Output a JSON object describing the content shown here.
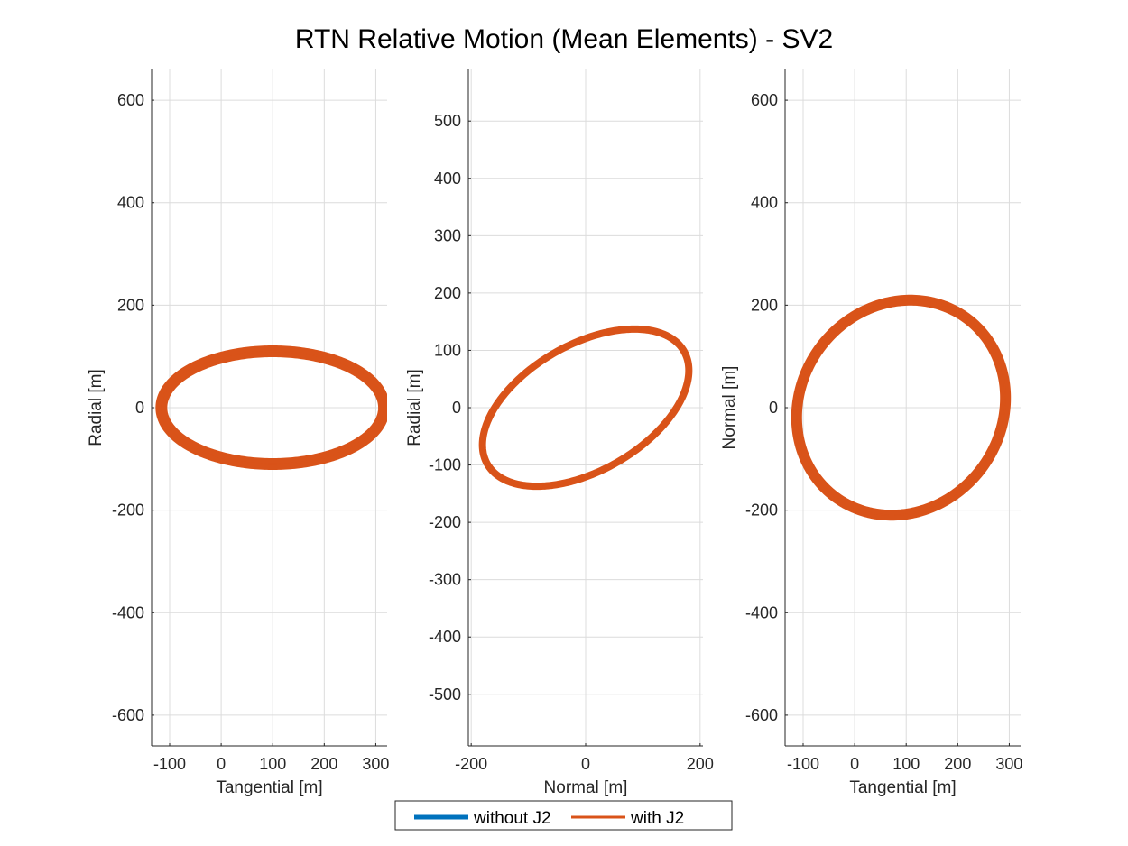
{
  "figure": {
    "title": "RTN Relative Motion (Mean Elements) - SV2"
  },
  "legend": {
    "placement": "bottom-center-outside",
    "entries": [
      {
        "label": "without J2",
        "color": "#0072BD"
      },
      {
        "label": "with J2",
        "color": "#D95319"
      }
    ]
  },
  "chart_data": [
    {
      "type": "line",
      "xlabel": "Tangential [m]",
      "ylabel": "Radial [m]",
      "xlim": [
        -135,
        322
      ],
      "ylim": [
        -660,
        660
      ],
      "xticks": [
        -100,
        0,
        100,
        200,
        300
      ],
      "yticks": [
        -600,
        -400,
        -200,
        0,
        200,
        400,
        600
      ],
      "grid": true,
      "series": [
        {
          "name": "without J2",
          "color": "#0072BD",
          "center": [
            100,
            0
          ],
          "semi_x": 220,
          "semi_y": 112,
          "tilt": 0,
          "band": 0
        },
        {
          "name": "with J2",
          "color": "#D95319",
          "center": [
            100,
            0
          ],
          "semi_x": 216,
          "semi_y": 110,
          "tilt": 0,
          "band": 13
        }
      ]
    },
    {
      "type": "line",
      "xlabel": "Normal [m]",
      "ylabel": "Radial [m]",
      "xlim": [
        -205,
        205
      ],
      "ylim": [
        -590,
        590
      ],
      "xticks": [
        -200,
        0,
        200
      ],
      "yticks": [
        -500,
        -400,
        -300,
        -200,
        -100,
        0,
        100,
        200,
        300,
        400,
        500
      ],
      "grid": true,
      "series": [
        {
          "name": "without J2",
          "color": "#0072BD",
          "center": [
            0,
            0
          ],
          "semi_x": 200,
          "semi_y": 112,
          "tilt": 0.52,
          "band": 0
        },
        {
          "name": "with J2",
          "color": "#D95319",
          "center": [
            0,
            0
          ],
          "semi_x": 198,
          "semi_y": 110,
          "tilt": 0.52,
          "band": 8
        }
      ]
    },
    {
      "type": "line",
      "xlabel": "Tangential [m]",
      "ylabel": "Normal [m]",
      "xlim": [
        -135,
        322
      ],
      "ylim": [
        -660,
        660
      ],
      "xticks": [
        -100,
        0,
        100,
        200,
        300
      ],
      "yticks": [
        -600,
        -400,
        -200,
        0,
        200,
        400,
        600
      ],
      "grid": true,
      "series": [
        {
          "name": "without J2",
          "color": "#0072BD",
          "center": [
            90,
            0
          ],
          "semi_x": 220,
          "semi_y": 200,
          "tilt": 0.95,
          "band": 0
        },
        {
          "name": "with J2",
          "color": "#D95319",
          "center": [
            90,
            0
          ],
          "semi_x": 216,
          "semi_y": 196,
          "tilt": 0.97,
          "band": 12
        }
      ]
    }
  ]
}
